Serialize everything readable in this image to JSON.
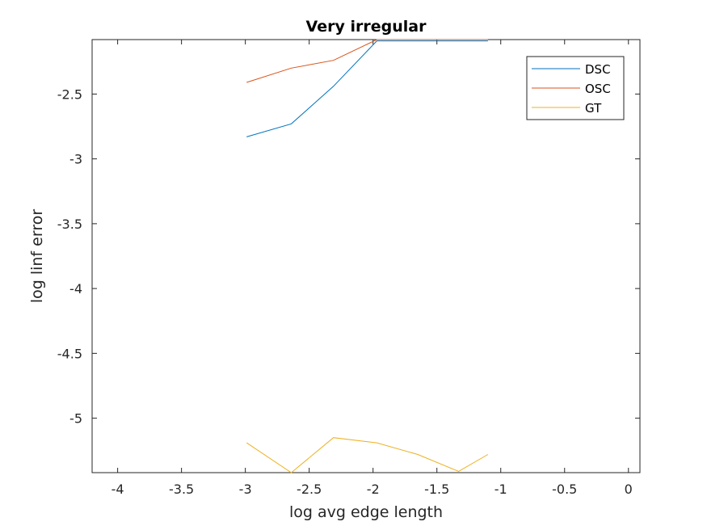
{
  "chart_data": {
    "type": "line",
    "title": "Very irregular",
    "xlabel": "log avg edge length",
    "ylabel": "log linf error",
    "xlim": [
      -4.2,
      0.09
    ],
    "ylim": [
      -5.42,
      -2.08
    ],
    "xticks": [
      -4,
      -3.5,
      -3,
      -2.5,
      -2,
      -1.5,
      -1,
      -0.5,
      0
    ],
    "xtick_labels": [
      "-4",
      "-3.5",
      "-3",
      "-2.5",
      "-2",
      "-1.5",
      "-1",
      "-0.5",
      "0"
    ],
    "yticks": [
      -2.5,
      -3,
      -3.5,
      -4,
      -4.5,
      -5
    ],
    "ytick_labels": [
      "-2.5",
      "-3",
      "-3.5",
      "-4",
      "-4.5",
      "-5"
    ],
    "grid": false,
    "legend_position": "top-right",
    "series": [
      {
        "name": "DSC",
        "color": "#0072BD",
        "x": [
          -2.99,
          -2.64,
          -2.31,
          -1.97,
          -1.65,
          -1.33,
          -1.1
        ],
        "y": [
          -2.83,
          -2.73,
          -2.44,
          -2.09,
          -2.09,
          -2.09,
          -2.09
        ]
      },
      {
        "name": "OSC",
        "color": "#D95319",
        "x": [
          -2.99,
          -2.64,
          -2.31,
          -1.97,
          -1.65,
          -1.33,
          -1.1
        ],
        "y": [
          -2.41,
          -2.3,
          -2.24,
          -2.08,
          -2.08,
          -2.08,
          -2.08
        ]
      },
      {
        "name": "GT",
        "color": "#EDB120",
        "x": [
          -2.99,
          -2.64,
          -2.31,
          -1.97,
          -1.65,
          -1.33,
          -1.1
        ],
        "y": [
          -5.19,
          -5.42,
          -5.15,
          -5.19,
          -5.28,
          -5.41,
          -5.28
        ]
      }
    ]
  }
}
